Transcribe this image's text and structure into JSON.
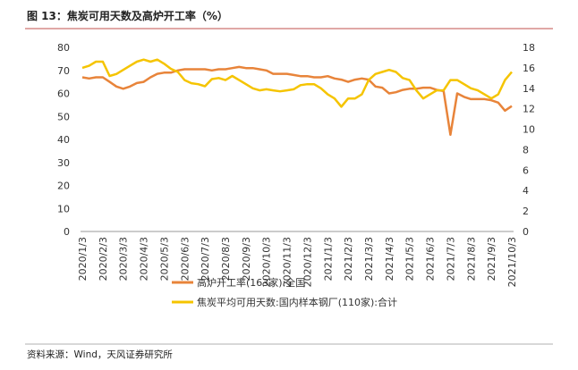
{
  "chart_data": {
    "type": "line",
    "title": "图 13：焦炭可用天数及高炉开工率（%）",
    "source": "资料来源：Wind，天风证券研究所",
    "categories": [
      "2020/1/3",
      null,
      null,
      "2020/2/3",
      null,
      null,
      "2020/3/3",
      null,
      null,
      "2020/4/3",
      null,
      null,
      "2020/5/3",
      null,
      null,
      "2020/6/3",
      null,
      null,
      "2020/7/3",
      null,
      null,
      "2020/8/3",
      null,
      null,
      "2020/9/3",
      null,
      null,
      "2020/10/3",
      null,
      null,
      "2020/11/3",
      null,
      null,
      "2020/12/3",
      null,
      null,
      "2021/1/3",
      null,
      null,
      "2021/2/3",
      null,
      null,
      "2021/3/3",
      null,
      null,
      "2021/4/3",
      null,
      null,
      "2021/5/3",
      null,
      null,
      "2021/6/3",
      null,
      null,
      "2021/7/3",
      null,
      null,
      "2021/8/3",
      null,
      null,
      "2021/9/3",
      null,
      null,
      "2021/10/3"
    ],
    "series": [
      {
        "name": "高炉开工率(163家):全国",
        "color": "#e8843a",
        "values": [
          67,
          66.5,
          67,
          67,
          65,
          63,
          62,
          63,
          64.5,
          65,
          67,
          68.5,
          69,
          69,
          70,
          70.5,
          70.5,
          70.5,
          70.5,
          70,
          70.5,
          70.5,
          71,
          71.5,
          71,
          71,
          70.5,
          70,
          68.5,
          68.5,
          68.5,
          68,
          67.5,
          67.5,
          67,
          67,
          67.5,
          66.5,
          66,
          65,
          66,
          66.5,
          66,
          63,
          62.5,
          60,
          60.5,
          61.5,
          62,
          62,
          62.5,
          62.5,
          61.5,
          61,
          42,
          60,
          58.5,
          57.5,
          57.5,
          57.5,
          57,
          56,
          52.5,
          54.5
        ]
      },
      {
        "name": "焦炭平均可用天数:国内样本钢厂(110家):合计",
        "color": "#f5c400",
        "axis": "y2",
        "values": [
          16,
          16.2,
          16.6,
          16.6,
          15.2,
          15.4,
          15.8,
          16.2,
          16.6,
          16.8,
          16.6,
          16.8,
          16.4,
          15.9,
          15.6,
          14.8,
          14.5,
          14.4,
          14.2,
          14.9,
          15,
          14.8,
          15.2,
          14.8,
          14.4,
          14,
          13.8,
          13.9,
          13.8,
          13.7,
          13.8,
          13.9,
          14.3,
          14.4,
          14.4,
          14,
          13.4,
          13,
          12.2,
          13,
          13,
          13.4,
          14.8,
          15.4,
          15.6,
          15.8,
          15.6,
          15,
          14.8,
          13.8,
          13,
          13.4,
          13.8,
          13.8,
          14.8,
          14.8,
          14.4,
          14,
          13.8,
          13.4,
          13,
          13.4,
          14.8,
          15.6
        ]
      }
    ],
    "ylim": [
      0,
      80
    ],
    "yticks": [
      0,
      10,
      20,
      30,
      40,
      50,
      60,
      70,
      80
    ],
    "y2lim": [
      0,
      18
    ],
    "y2ticks": [
      0,
      2,
      4,
      6,
      8,
      10,
      12,
      14,
      16,
      18
    ]
  }
}
